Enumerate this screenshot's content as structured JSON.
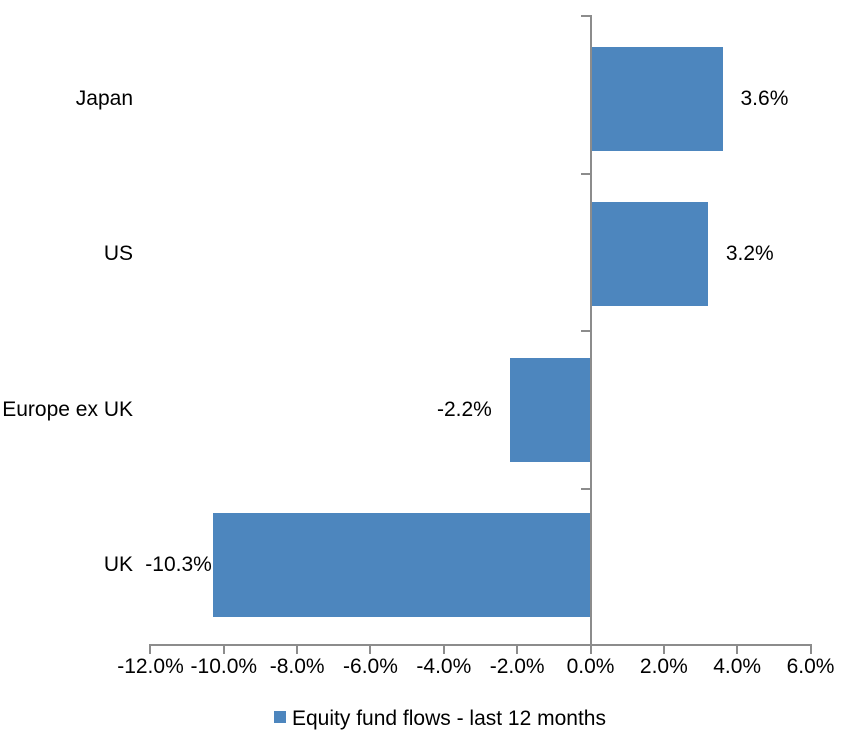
{
  "chart_data": {
    "type": "bar",
    "orientation": "horizontal",
    "title": "",
    "xlabel": "",
    "ylabel": "",
    "categories": [
      "Japan",
      "US",
      "Europe ex UK",
      "UK"
    ],
    "series": [
      {
        "name": "Equity fund flows - last 12 months",
        "values": [
          3.6,
          3.2,
          -2.2,
          -10.3
        ],
        "data_labels": [
          "3.6%",
          "3.2%",
          "-2.2%",
          "-10.3%"
        ]
      }
    ],
    "xlim": [
      -12,
      6
    ],
    "x_tick_step": 2,
    "x_ticks": [
      -12,
      -10,
      -8,
      -6,
      -4,
      -2,
      0,
      2,
      4,
      6
    ],
    "x_tick_labels": [
      "-12.0%",
      "-10.0%",
      "-8.0%",
      "-6.0%",
      "-4.0%",
      "-2.0%",
      "0.0%",
      "2.0%",
      "4.0%",
      "6.0%"
    ],
    "grid": false,
    "legend": {
      "position": "bottom",
      "entries": [
        "Equity fund flows - last 12 months"
      ]
    },
    "colors": {
      "bar": "#4D86BE",
      "axis": "#8C8C8C",
      "text": "#000000",
      "background": "#FFFFFF"
    }
  }
}
